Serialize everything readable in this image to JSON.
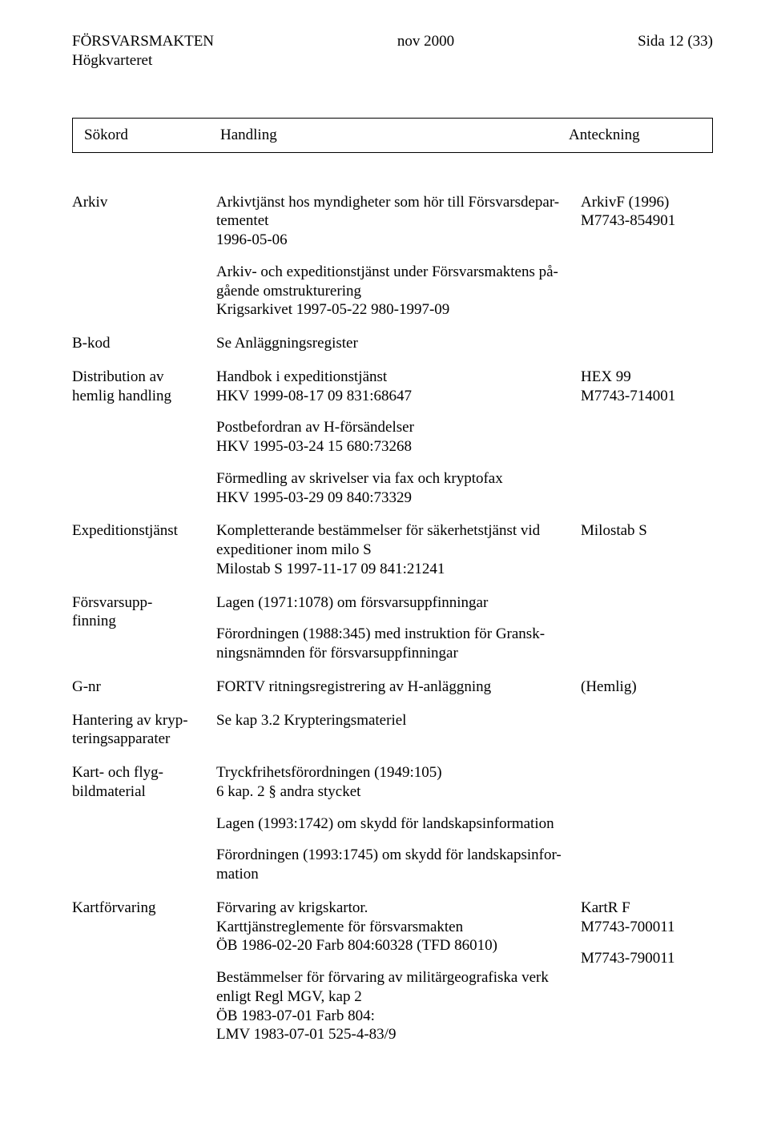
{
  "header": {
    "org": "FÖRSVARSMAKTEN",
    "date": "nov 2000",
    "page": "Sida 12 (33)",
    "suborg": "Högkvarteret"
  },
  "columns": {
    "sokord": "Sökord",
    "handling": "Handling",
    "anteckning": "Anteckning"
  },
  "entries": [
    {
      "sokord": "Arkiv",
      "handling_blocks": [
        [
          "Arkivtjänst hos myndigheter som hör till Försvarsdepar-",
          "tementet",
          "1996-05-06"
        ],
        [
          "Arkiv- och expeditionstjänst under Försvarsmaktens på-",
          "gående omstrukturering",
          "Krigsarkivet 1997-05-22  980-1997-09"
        ]
      ],
      "anteckning": [
        "ArkivF (1996)",
        "M7743-854901"
      ]
    },
    {
      "sokord": "B-kod",
      "handling_blocks": [
        [
          "Se Anläggningsregister"
        ]
      ],
      "anteckning": []
    },
    {
      "sokord_lines": [
        "Distribution av",
        "hemlig handling"
      ],
      "handling_blocks": [
        [
          "Handbok i expeditionstjänst",
          "HKV 1999-08-17  09 831:68647"
        ],
        [
          "Postbefordran av H-försändelser",
          "HKV 1995-03-24  15 680:73268"
        ],
        [
          "Förmedling av skrivelser via fax och kryptofax",
          "HKV 1995-03-29  09 840:73329"
        ]
      ],
      "anteckning": [
        "HEX 99",
        "M7743-714001"
      ]
    },
    {
      "sokord": "Expeditionstjänst",
      "handling_blocks": [
        [
          "Kompletterande bestämmelser för säkerhetstjänst vid",
          "expeditioner inom milo S",
          "Milostab S 1997-11-17  09 841:21241"
        ]
      ],
      "anteckning": [
        "Milostab S"
      ]
    },
    {
      "sokord_lines": [
        "Försvarsupp-",
        "finning"
      ],
      "handling_blocks": [
        [
          "Lagen (1971:1078) om försvarsuppfinningar"
        ],
        [
          "Förordningen (1988:345) med instruktion för Gransk-",
          "ningsnämnden för försvarsuppfinningar"
        ]
      ],
      "anteckning": []
    },
    {
      "sokord": "G-nr",
      "handling_blocks": [
        [
          "FORTV ritningsregistrering av H-anläggning"
        ]
      ],
      "anteckning": [
        "(Hemlig)"
      ]
    },
    {
      "sokord_lines": [
        "Hantering av kryp-",
        "teringsapparater"
      ],
      "handling_blocks": [
        [
          "Se kap 3.2 Krypteringsmateriel"
        ]
      ],
      "anteckning": []
    },
    {
      "sokord_lines": [
        "Kart- och flyg-",
        "bildmaterial"
      ],
      "handling_blocks": [
        [
          "Tryckfrihetsförordningen (1949:105)",
          "6 kap. 2 § andra stycket"
        ],
        [
          "Lagen (1993:1742) om skydd för landskapsinformation"
        ],
        [
          "Förordningen (1993:1745) om skydd för landskapsinfor-",
          "mation"
        ]
      ],
      "anteckning": []
    },
    {
      "sokord": "Kartförvaring",
      "handling_blocks": [
        [
          "Förvaring av krigskartor.",
          "Karttjänstreglemente för försvarsmakten",
          "ÖB 1986-02-20  Farb 804:60328 (TFD 86010)"
        ],
        [
          "Bestämmelser för förvaring av militärgeografiska verk",
          "enligt Regl MGV, kap 2",
          "ÖB 1983-07-01  Farb 804:",
          "LMV 1983-07-01  525-4-83/9"
        ]
      ],
      "anteckning_blocks": [
        [
          "KartR F",
          "M7743-700011"
        ],
        [
          "M7743-790011"
        ]
      ]
    }
  ]
}
